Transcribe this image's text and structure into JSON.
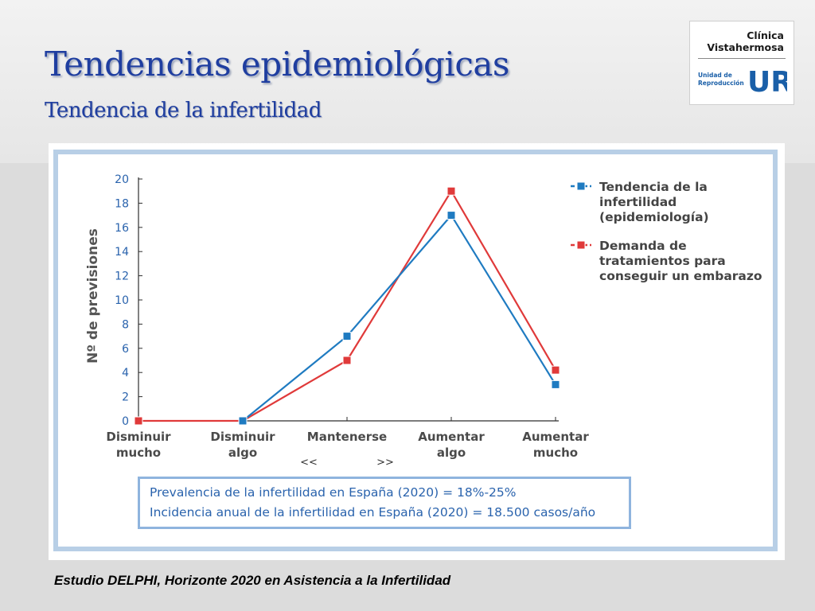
{
  "slide": {
    "title": "Tendencias epidemiológicas",
    "subtitle": "Tendencia de la infertilidad",
    "source": "Estudio DELPHI, Horizonte 2020 en Asistencia a la Infertilidad"
  },
  "logo": {
    "line1": "Clínica",
    "line2": "Vistahermosa",
    "unit_line1": "Unidad de",
    "unit_line2": "Reproducción",
    "mark": "UR",
    "colors": {
      "mark": "#1a5fa8",
      "text": "#1a1a1a"
    }
  },
  "info": {
    "line1": "Prevalencia de la infertilidad en España (2020) = 18%-25%",
    "line2": "Incidencia anual de la infertilidad en España (2020) = 18.500 casos/año"
  },
  "chart_data": {
    "type": "line",
    "ylabel": "Nº de previsiones",
    "ylim": [
      0,
      20
    ],
    "yticks": [
      0,
      2,
      4,
      6,
      8,
      10,
      12,
      14,
      16,
      18,
      20
    ],
    "categories": [
      [
        "Disminuir",
        "mucho"
      ],
      [
        "Disminuir",
        "algo"
      ],
      [
        "Mantenerse"
      ],
      [
        "Aumentar",
        "algo"
      ],
      [
        "Aumentar",
        "mucho"
      ]
    ],
    "annotations": [
      "<<",
      ">>"
    ],
    "series": [
      {
        "name": [
          "Tendencia de la",
          "infertilidad",
          "(epidemiología)"
        ],
        "color": "#1f7bc1",
        "values": [
          null,
          0,
          7,
          17,
          3
        ]
      },
      {
        "name": [
          "Demanda de",
          "tratamientos para",
          "conseguir un embarazo"
        ],
        "color": "#e03a3a",
        "values": [
          0,
          0,
          5,
          19,
          4.2
        ]
      }
    ],
    "legend_position": "top-right",
    "colors": {
      "axis": "#2e2e2e",
      "tick_label": "#2a63ad",
      "category_label": "#4a4a4a"
    }
  }
}
